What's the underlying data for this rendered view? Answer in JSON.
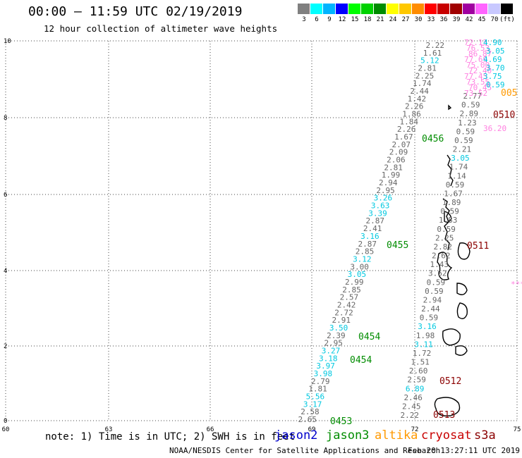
{
  "header": {
    "title": "00:00 – 11:59 UTC 02/19/2019",
    "subtitle": "12 hour collection of altimeter wave heights"
  },
  "scale": {
    "colors": [
      "#808080",
      "#00ffff",
      "#00b4ff",
      "#0000ff",
      "#00ff00",
      "#00d200",
      "#008c00",
      "#ffff00",
      "#ffc800",
      "#ff8c00",
      "#ff0000",
      "#c80000",
      "#a00000",
      "#a000a0",
      "#ff64ff",
      "#c8c8ff",
      "#000000"
    ],
    "labels": [
      "3",
      "6",
      "9",
      "12",
      "15",
      "18",
      "21",
      "24",
      "27",
      "30",
      "33",
      "36",
      "39",
      "42",
      "45",
      "70",
      "(ft)"
    ]
  },
  "axes": {
    "x_ticks": [
      "60",
      "63",
      "66",
      "69",
      "72",
      "75"
    ],
    "y_ticks": [
      "0",
      "2",
      "4",
      "6",
      "8",
      "10"
    ]
  },
  "colors": {
    "gray": "#666666",
    "cyan": "#00c8e0",
    "green": "#008c00",
    "darkred": "#8b0000",
    "pink": "#ff80e0",
    "orange": "#ff9900",
    "blue": "#0000cc"
  },
  "tracks": {
    "jason3_descending_a": [
      "2.22",
      "1.61",
      "5.12",
      "2.81",
      "2.25",
      "1.74",
      "2.44",
      "1.42",
      "2.26",
      "1.86",
      "1.84",
      "2.26",
      "1.67",
      "2.07",
      "2.09",
      "2.06",
      "2.81",
      "1.99",
      "2.94",
      "2.95",
      "3.26",
      "3.63",
      "3.39",
      "2.87",
      "2.41",
      "3.16",
      "2.87",
      "2.85",
      "3.12",
      "3.00",
      "3.05",
      "2.99",
      "2.85",
      "2.57",
      "2.42",
      "2.72",
      "2.91",
      "3.50",
      "2.39",
      "2.95",
      "3.27",
      "3.18",
      "3.97",
      "3.98",
      "2.79",
      "1.81",
      "5.56",
      "3.17",
      "2.58",
      "2.65"
    ],
    "jason3_descending_b": [
      "2.77",
      "0.59",
      "2.89",
      "1.23",
      "0.59",
      "0.59",
      "2.21",
      "3.05",
      "1.74",
      "1.14",
      "0.59",
      "1.67",
      "1.89",
      "0.59",
      "1.83",
      "0.59",
      "2.25",
      "2.82",
      "2.62",
      "1.43",
      "3.62",
      "0.59",
      "0.59",
      "2.94",
      "2.44",
      "0.59",
      "3.16",
      "1.98",
      "3.11",
      "1.72",
      "1.51",
      "2.60",
      "2.59",
      "6.89",
      "2.46",
      "2.45",
      "2.22"
    ],
    "pink_cluster": [
      "72.13",
      "76.53",
      "86.87",
      "77.69",
      "75.00",
      "72.40",
      "77.45",
      "73.55",
      "70.45",
      "73.52",
      "36.20"
    ],
    "cyan_cluster": [
      "4.90",
      "3.05",
      "4.69",
      "3.70",
      "3.75",
      "0.59"
    ],
    "offscreen_marker": "***"
  },
  "time_labels": [
    {
      "text": "0453",
      "color": "green"
    },
    {
      "text": "0454",
      "color": "green"
    },
    {
      "text": "0454",
      "color": "green"
    },
    {
      "text": "0455",
      "color": "green"
    },
    {
      "text": "0456",
      "color": "green"
    },
    {
      "text": "0510",
      "color": "darkred"
    },
    {
      "text": "0511",
      "color": "darkred"
    },
    {
      "text": "0512",
      "color": "darkred"
    },
    {
      "text": "0513",
      "color": "darkred"
    },
    {
      "text": "005",
      "color": "orange"
    }
  ],
  "footer": {
    "note": "note: 1) Time is in UTC; 2) SWH is in feet",
    "satellites": [
      {
        "name": "jason2",
        "color": "#0000cc"
      },
      {
        "name": "jason3",
        "color": "#008c00"
      },
      {
        "name": "altika",
        "color": "#ff9900"
      },
      {
        "name": "cryosat",
        "color": "#c80000"
      },
      {
        "name": "s3a",
        "color": "#8b0000"
      }
    ],
    "credit": "NOAA/NESDIS Center for Satellite Applications and Research",
    "timestamp": "Feb 20 13:27:11 UTC 2019"
  }
}
